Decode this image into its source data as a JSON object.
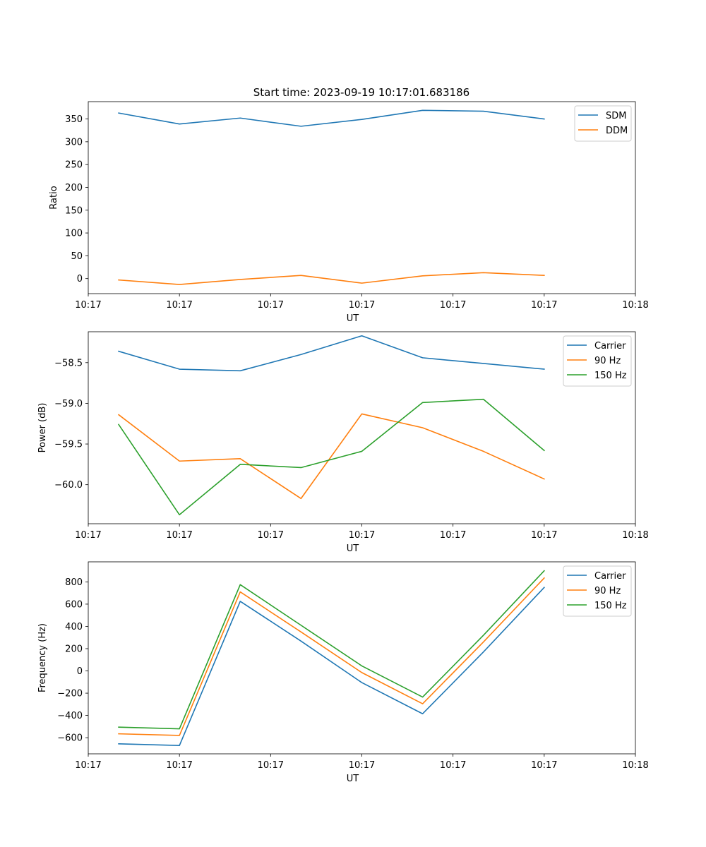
{
  "title": "Start time: 2023-09-19 10:17:01.683186",
  "colors": {
    "blue": "#1f77b4",
    "orange": "#ff7f0e",
    "green": "#2ca02c"
  },
  "chart_data": [
    {
      "type": "line",
      "xlabel": "UT",
      "ylabel": "Ratio",
      "xlim": [
        0,
        9
      ],
      "ylim": [
        -33,
        388
      ],
      "x": [
        0.5,
        1.5,
        2.5,
        3.5,
        4.5,
        5.5,
        6.5,
        7.5
      ],
      "x_ticks": [
        0,
        1.5,
        3,
        4.5,
        6,
        7.5,
        9
      ],
      "x_tick_labels": [
        "10:17",
        "10:17",
        "10:17",
        "10:17",
        "10:17",
        "10:17",
        "10:18"
      ],
      "y_ticks": [
        0,
        50,
        100,
        150,
        200,
        250,
        300,
        350
      ],
      "y_tick_labels": [
        "0",
        "50",
        "100",
        "150",
        "200",
        "250",
        "300",
        "350"
      ],
      "legend": "top-right",
      "series": [
        {
          "name": "SDM",
          "color": "#1f77b4",
          "values": [
            363,
            339,
            352,
            334,
            349,
            369,
            367,
            350
          ]
        },
        {
          "name": "DDM",
          "color": "#ff7f0e",
          "values": [
            -3,
            -13,
            -2,
            7,
            -10,
            6,
            13,
            7
          ]
        }
      ]
    },
    {
      "type": "line",
      "xlabel": "UT",
      "ylabel": "Power (dB)",
      "xlim": [
        0,
        9
      ],
      "ylim": [
        -60.48,
        -58.12
      ],
      "x": [
        0.5,
        1.5,
        2.5,
        3.5,
        4.5,
        5.5,
        6.5,
        7.5
      ],
      "x_ticks": [
        0,
        1.5,
        3,
        4.5,
        6,
        7.5,
        9
      ],
      "x_tick_labels": [
        "10:17",
        "10:17",
        "10:17",
        "10:17",
        "10:17",
        "10:17",
        "10:18"
      ],
      "y_ticks": [
        -60.0,
        -59.5,
        -59.0,
        -58.5
      ],
      "y_tick_labels": [
        "−60.0",
        "−59.5",
        "−59.0",
        "−58.5"
      ],
      "legend": "top-right",
      "series": [
        {
          "name": "Carrier",
          "color": "#1f77b4",
          "values": [
            -58.36,
            -58.58,
            -58.6,
            -58.4,
            -58.17,
            -58.44,
            -58.51,
            -58.58
          ]
        },
        {
          "name": "90 Hz",
          "color": "#ff7f0e",
          "values": [
            -59.14,
            -59.71,
            -59.68,
            -60.17,
            -59.13,
            -59.3,
            -59.59,
            -59.93
          ]
        },
        {
          "name": "150 Hz",
          "color": "#2ca02c",
          "values": [
            -59.26,
            -60.37,
            -59.75,
            -59.79,
            -59.59,
            -58.99,
            -58.95,
            -59.58
          ]
        }
      ]
    },
    {
      "type": "line",
      "xlabel": "UT",
      "ylabel": "Frequency (Hz)",
      "xlim": [
        0,
        9
      ],
      "ylim": [
        -745,
        980
      ],
      "x": [
        0.5,
        1.5,
        2.5,
        3.5,
        4.5,
        5.5,
        6.5,
        7.5
      ],
      "x_ticks": [
        0,
        1.5,
        3,
        4.5,
        6,
        7.5,
        9
      ],
      "x_tick_labels": [
        "10:17",
        "10:17",
        "10:17",
        "10:17",
        "10:17",
        "10:17",
        "10:18"
      ],
      "y_ticks": [
        -600,
        -400,
        -200,
        0,
        200,
        400,
        600,
        800
      ],
      "y_tick_labels": [
        "−600",
        "−400",
        "−200",
        "0",
        "200",
        "400",
        "600",
        "800"
      ],
      "legend": "top-right",
      "series": [
        {
          "name": "Carrier",
          "color": "#1f77b4",
          "values": [
            -655,
            -670,
            625,
            268,
            -105,
            -385,
            170,
            750
          ]
        },
        {
          "name": "90 Hz",
          "color": "#ff7f0e",
          "values": [
            -565,
            -580,
            710,
            350,
            -15,
            -295,
            260,
            835
          ]
        },
        {
          "name": "150 Hz",
          "color": "#2ca02c",
          "values": [
            -505,
            -520,
            775,
            410,
            45,
            -235,
            320,
            900
          ]
        }
      ]
    }
  ]
}
